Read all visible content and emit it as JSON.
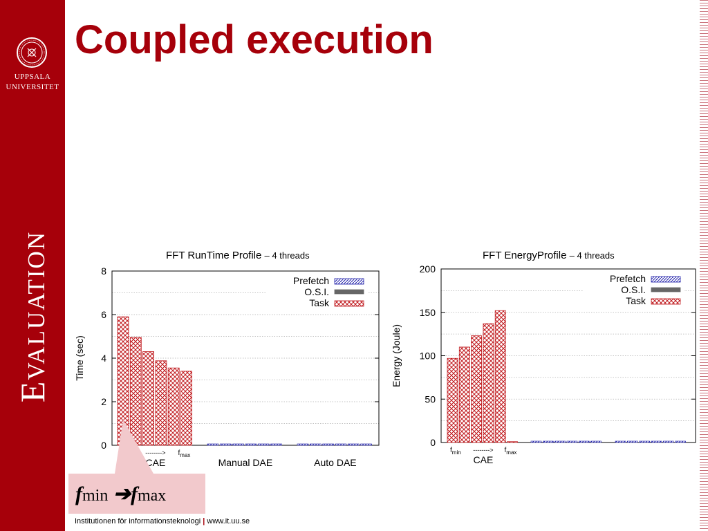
{
  "slide": {
    "title": "Coupled execution",
    "section": "Evaluation",
    "university": [
      "UPPSALA",
      "UNIVERSITET"
    ],
    "footer": {
      "institution": "Institutionen för informationsteknologi",
      "separator": "|",
      "url": "www.it.uu.se"
    },
    "note": {
      "base": "f",
      "from": "min",
      "arrow": "➔",
      "to": "max"
    }
  },
  "colors": {
    "accent": "#a6000a",
    "task": "#c0181c",
    "osi": "#666666",
    "prefetch": "#1a1aa8",
    "note_bg": "#f2c9cc"
  },
  "chart_data": [
    {
      "type": "bar",
      "title": "FFT RunTime Profile",
      "subtitle": "– 4 threads",
      "ylabel": "Time (sec)",
      "ylim": [
        0,
        8
      ],
      "yticks": [
        0,
        2,
        4,
        6,
        8
      ],
      "grid": true,
      "legend_position": "top-right",
      "legend": [
        "Prefetch",
        "O.S.I.",
        "Task"
      ],
      "groups": [
        {
          "label": "CAE",
          "freq_labels": {
            "from": "f",
            "from_sub": "min",
            "arrow": "-------->",
            "to": "f",
            "to_sub": "max"
          },
          "bars": [
            {
              "task": 5.9,
              "prefetch": 0
            },
            {
              "task": 4.95,
              "prefetch": 0
            },
            {
              "task": 4.3,
              "prefetch": 0
            },
            {
              "task": 3.88,
              "prefetch": 0
            },
            {
              "task": 3.55,
              "prefetch": 0
            },
            {
              "task": 3.4,
              "prefetch": 0
            }
          ]
        },
        {
          "label": "Manual DAE",
          "bars": [
            {
              "task": 0,
              "prefetch": 0.05
            },
            {
              "task": 0,
              "prefetch": 0.05
            },
            {
              "task": 0,
              "prefetch": 0.05
            },
            {
              "task": 0,
              "prefetch": 0.05
            },
            {
              "task": 0,
              "prefetch": 0.05
            },
            {
              "task": 0,
              "prefetch": 0.05
            }
          ]
        },
        {
          "label": "Auto DAE",
          "bars": [
            {
              "task": 0,
              "prefetch": 0.05
            },
            {
              "task": 0,
              "prefetch": 0.05
            },
            {
              "task": 0,
              "prefetch": 0.05
            },
            {
              "task": 0,
              "prefetch": 0.05
            },
            {
              "task": 0,
              "prefetch": 0.05
            },
            {
              "task": 0,
              "prefetch": 0.05
            }
          ]
        }
      ]
    },
    {
      "type": "bar",
      "title": "FFT EnergyProfile",
      "subtitle": "– 4 threads",
      "ylabel": "Energy (Joule)",
      "ylim": [
        0,
        200
      ],
      "yticks": [
        0,
        50,
        100,
        150,
        200
      ],
      "grid": true,
      "legend_position": "top-right",
      "legend": [
        "Prefetch",
        "O.S.I.",
        "Task"
      ],
      "groups": [
        {
          "label": "CAE",
          "freq_labels": {
            "from": "f",
            "from_sub": "min",
            "arrow": "-------->",
            "to": "f",
            "to_sub": "max"
          },
          "bars": [
            {
              "task": 97,
              "prefetch": 0
            },
            {
              "task": 110,
              "prefetch": 0
            },
            {
              "task": 123,
              "prefetch": 0
            },
            {
              "task": 137,
              "prefetch": 0
            },
            {
              "task": 152,
              "prefetch": 0
            },
            {
              "task": 1,
              "prefetch": 0
            }
          ]
        },
        {
          "label": "",
          "bars": [
            {
              "task": 0,
              "prefetch": 1
            },
            {
              "task": 0,
              "prefetch": 1
            },
            {
              "task": 0,
              "prefetch": 1
            },
            {
              "task": 0,
              "prefetch": 1
            },
            {
              "task": 0,
              "prefetch": 1
            },
            {
              "task": 0,
              "prefetch": 1
            }
          ]
        },
        {
          "label": "",
          "bars": [
            {
              "task": 0,
              "prefetch": 1
            },
            {
              "task": 0,
              "prefetch": 1
            },
            {
              "task": 0,
              "prefetch": 1
            },
            {
              "task": 0,
              "prefetch": 1
            },
            {
              "task": 0,
              "prefetch": 1
            },
            {
              "task": 0,
              "prefetch": 1
            }
          ]
        }
      ]
    }
  ]
}
